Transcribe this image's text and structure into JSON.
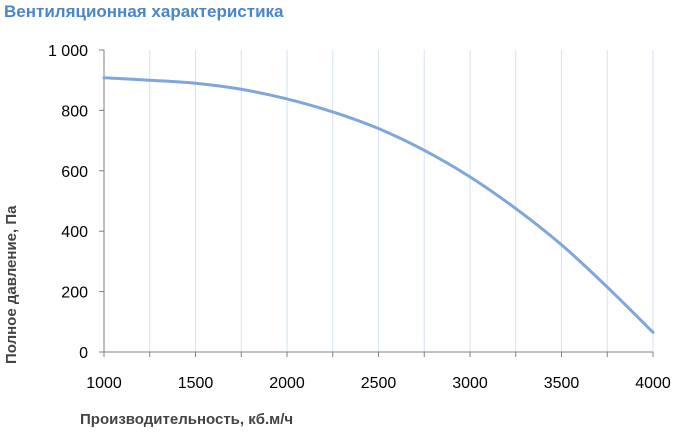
{
  "chart_data": {
    "type": "line",
    "title": "Вентиляционная характеристика",
    "xlabel": "Производительность, кб.м/ч",
    "ylabel": "Полное  давление, Па",
    "xlim": [
      1000,
      4000
    ],
    "ylim": [
      0,
      1000
    ],
    "x_ticks": [
      1000,
      1500,
      2000,
      2500,
      3000,
      3500,
      4000
    ],
    "x_tick_labels": [
      "1000",
      "1500",
      "2000",
      "2500",
      "3000",
      "3500",
      "4000"
    ],
    "y_ticks": [
      0,
      200,
      400,
      600,
      800,
      1000
    ],
    "y_tick_labels": [
      "0",
      "200",
      "400",
      "600",
      "800",
      "1 000"
    ],
    "grid": "vertical",
    "series": [
      {
        "color": "#7fa7dc",
        "x": [
          1000,
          1250,
          1500,
          1750,
          2000,
          2250,
          2500,
          2750,
          3000,
          3250,
          3500,
          3750,
          4000
        ],
        "y": [
          908,
          900,
          890,
          870,
          838,
          795,
          740,
          668,
          580,
          475,
          355,
          215,
          65
        ]
      }
    ]
  }
}
